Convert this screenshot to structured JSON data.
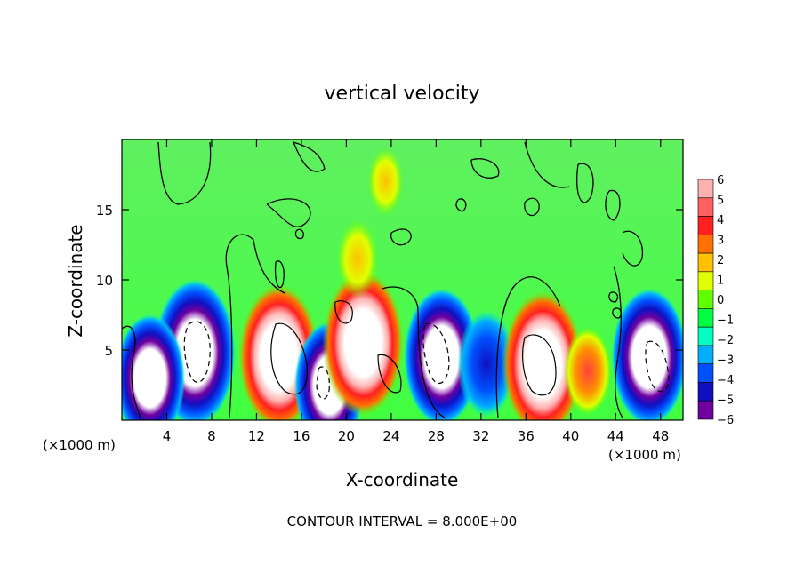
{
  "chart_data": {
    "type": "heatmap",
    "title": "vertical velocity",
    "xlabel": "X-coordinate",
    "ylabel": "Z-coordinate",
    "x_unit_left": "(×1000 m)",
    "x_unit_right": "(×1000 m)",
    "footer": "CONTOUR INTERVAL = 8.000E+00",
    "xlim": [
      0,
      50
    ],
    "ylim": [
      0,
      20
    ],
    "x_ticks": [
      4,
      8,
      12,
      16,
      20,
      24,
      28,
      32,
      36,
      40,
      44,
      48
    ],
    "x_tick_labels": [
      "4",
      "8",
      "12",
      "16",
      "20",
      "24",
      "28",
      "32",
      "36",
      "40",
      "44",
      "48"
    ],
    "y_ticks": [
      5,
      10,
      15
    ],
    "y_tick_labels": [
      "5",
      "10",
      "15"
    ],
    "colorbar": {
      "levels": [
        6,
        5,
        4,
        3,
        2,
        1,
        0,
        -1,
        -2,
        -3,
        -4,
        -5,
        -6
      ],
      "labels": [
        "6",
        "5",
        "4",
        "3",
        "2",
        "1",
        "0",
        "−1",
        "−2",
        "−3",
        "−4",
        "−5",
        "−6"
      ],
      "colors": [
        "#ffb0b0",
        "#ff6060",
        "#ff2020",
        "#ff7000",
        "#ffc000",
        "#e0ff00",
        "#60ff00",
        "#00ff40",
        "#00ffc0",
        "#00b0ff",
        "#0050ff",
        "#1010c0",
        "#7000a0"
      ]
    },
    "background_color": "#40f040",
    "cells": [
      {
        "x": 6.5,
        "z": 4.8,
        "value": -10
      },
      {
        "x": 2.5,
        "z": 3.0,
        "value": -8
      },
      {
        "x": 14.0,
        "z": 4.5,
        "value": 10
      },
      {
        "x": 18.5,
        "z": 2.5,
        "value": -8
      },
      {
        "x": 21.5,
        "z": 5.5,
        "value": 10
      },
      {
        "x": 28.5,
        "z": 4.5,
        "value": -9
      },
      {
        "x": 32.5,
        "z": 4.0,
        "value": -6
      },
      {
        "x": 37.5,
        "z": 4.0,
        "value": 10
      },
      {
        "x": 41.5,
        "z": 3.5,
        "value": 4
      },
      {
        "x": 47.0,
        "z": 4.5,
        "value": -9
      },
      {
        "x": 21.0,
        "z": 11.5,
        "value": 3
      },
      {
        "x": 23.5,
        "z": 17.0,
        "value": 2
      }
    ]
  }
}
